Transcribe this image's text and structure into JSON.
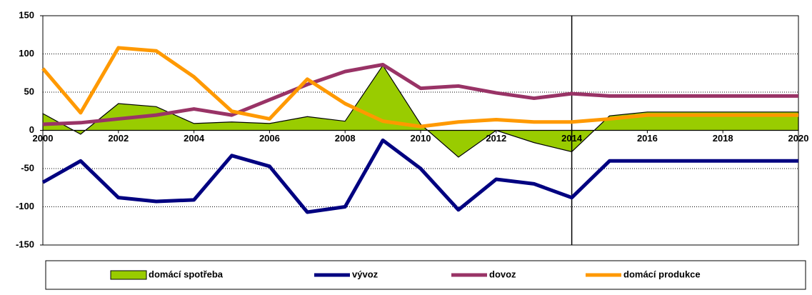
{
  "chart_data": {
    "type": "line",
    "x": [
      2000,
      2001,
      2002,
      2003,
      2004,
      2005,
      2006,
      2007,
      2008,
      2009,
      2010,
      2011,
      2012,
      2013,
      2014,
      2015,
      2016,
      2017,
      2018,
      2019,
      2020
    ],
    "series": [
      {
        "name": "domácí spotřeba",
        "color": "#99cc00",
        "area": true,
        "values": [
          22,
          -5,
          35,
          31,
          9,
          11,
          9,
          18,
          12,
          85,
          8,
          -35,
          0,
          -16,
          -28,
          19,
          24,
          24,
          24,
          24,
          24
        ]
      },
      {
        "name": "vývoz",
        "color": "#000080",
        "values": [
          -68,
          -40,
          -88,
          -93,
          -91,
          -33,
          -47,
          -107,
          -100,
          -13,
          -50,
          -104,
          -64,
          -70,
          -88,
          -40,
          -40,
          -40,
          -40,
          -40,
          -40
        ]
      },
      {
        "name": "dovoz",
        "color": "#993366",
        "values": [
          8,
          10,
          15,
          20,
          28,
          20,
          40,
          60,
          77,
          86,
          55,
          58,
          49,
          42,
          48,
          45,
          45,
          45,
          45,
          45,
          45
        ]
      },
      {
        "name": "domácí produkce",
        "color": "#ff9900",
        "values": [
          81,
          23,
          108,
          104,
          70,
          25,
          15,
          67,
          35,
          12,
          5,
          11,
          14,
          11,
          11,
          15,
          20,
          20,
          20,
          20,
          20
        ]
      }
    ],
    "xlim": [
      2000,
      2020
    ],
    "xticks": [
      2000,
      2002,
      2004,
      2006,
      2008,
      2010,
      2012,
      2014,
      2016,
      2018,
      2020
    ],
    "ylim": [
      -150,
      150
    ],
    "yticks": [
      -150,
      -100,
      -50,
      0,
      50,
      100,
      150
    ],
    "grid": true,
    "vline": 2014,
    "legend": "bottom"
  }
}
